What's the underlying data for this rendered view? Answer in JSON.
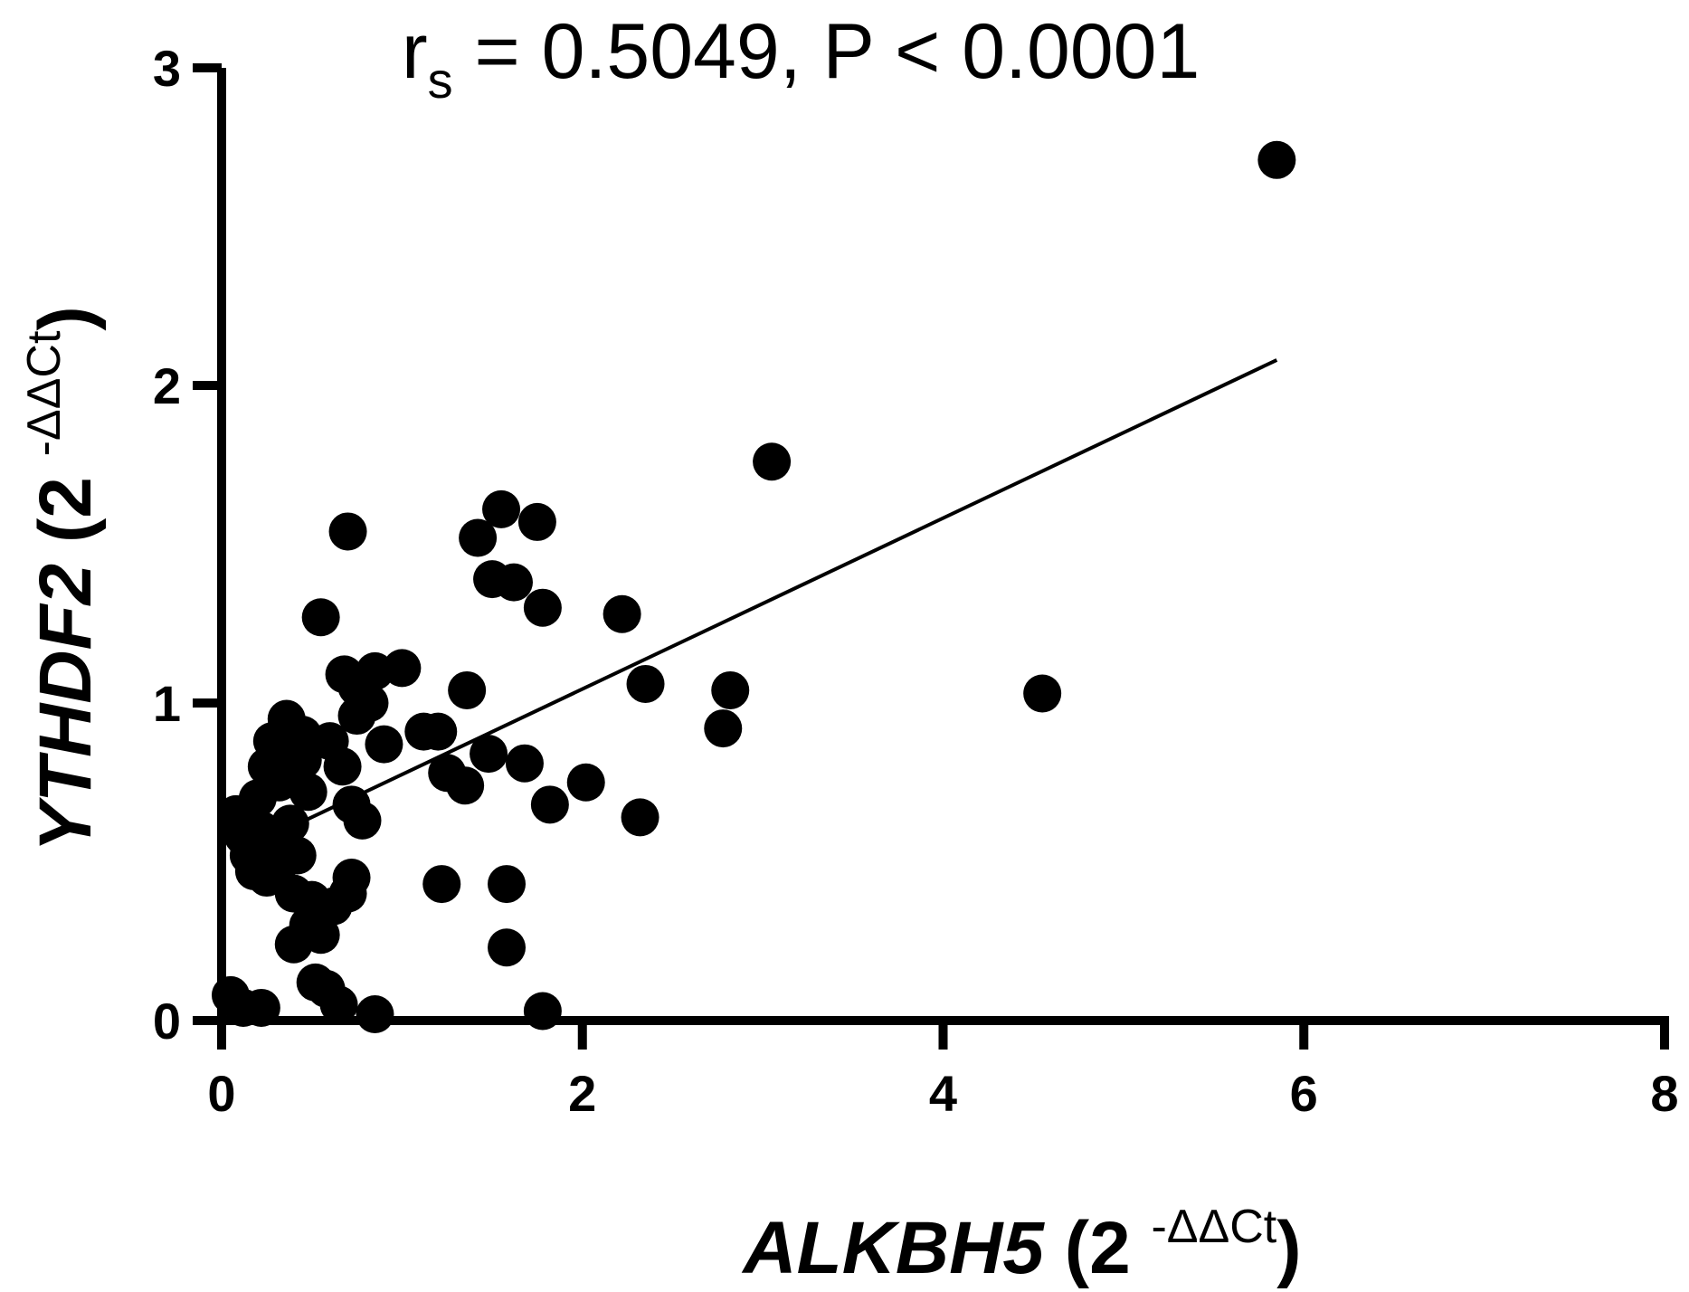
{
  "chart_data": {
    "type": "scatter",
    "title_parts": {
      "r": "r",
      "sub": "s",
      "rest": " = 0.5049, P < 0.0001"
    },
    "xlabel_parts": {
      "gene": "ALKBH5",
      "prefix": " (2 ",
      "sup": "-ΔΔCt",
      "suffix": ")"
    },
    "ylabel_parts": {
      "gene": "YTHDF2",
      "prefix": " (2 ",
      "sup": "-ΔΔCt",
      "suffix": ")"
    },
    "xlim": [
      0,
      8
    ],
    "ylim": [
      0,
      3
    ],
    "xticks": [
      0,
      2,
      4,
      6,
      8
    ],
    "yticks": [
      0,
      1,
      2,
      3
    ],
    "grid": false,
    "regression_line": {
      "x": [
        0.35,
        5.85
      ],
      "y": [
        0.6,
        2.08
      ]
    },
    "points": [
      {
        "x": 0.05,
        "y": 0.08
      },
      {
        "x": 0.12,
        "y": 0.04
      },
      {
        "x": 0.22,
        "y": 0.04
      },
      {
        "x": 0.08,
        "y": 0.65
      },
      {
        "x": 0.12,
        "y": 0.58
      },
      {
        "x": 0.15,
        "y": 0.52
      },
      {
        "x": 0.18,
        "y": 0.47
      },
      {
        "x": 0.2,
        "y": 0.7
      },
      {
        "x": 0.22,
        "y": 0.6
      },
      {
        "x": 0.25,
        "y": 0.8
      },
      {
        "x": 0.25,
        "y": 0.45
      },
      {
        "x": 0.28,
        "y": 0.88
      },
      {
        "x": 0.3,
        "y": 0.55
      },
      {
        "x": 0.32,
        "y": 0.75
      },
      {
        "x": 0.33,
        "y": 0.5
      },
      {
        "x": 0.35,
        "y": 0.85
      },
      {
        "x": 0.38,
        "y": 0.62
      },
      {
        "x": 0.4,
        "y": 0.4
      },
      {
        "x": 0.4,
        "y": 0.24
      },
      {
        "x": 0.42,
        "y": 0.52
      },
      {
        "x": 0.45,
        "y": 0.82
      },
      {
        "x": 0.48,
        "y": 0.3
      },
      {
        "x": 0.5,
        "y": 0.38
      },
      {
        "x": 0.36,
        "y": 0.95
      },
      {
        "x": 0.45,
        "y": 0.9
      },
      {
        "x": 0.48,
        "y": 0.72
      },
      {
        "x": 0.52,
        "y": 0.12
      },
      {
        "x": 0.55,
        "y": 0.27
      },
      {
        "x": 0.58,
        "y": 0.1
      },
      {
        "x": 0.6,
        "y": 0.88
      },
      {
        "x": 0.62,
        "y": 0.36
      },
      {
        "x": 0.65,
        "y": 0.05
      },
      {
        "x": 0.67,
        "y": 0.8
      },
      {
        "x": 0.7,
        "y": 0.4
      },
      {
        "x": 0.72,
        "y": 0.45
      },
      {
        "x": 0.55,
        "y": 1.27
      },
      {
        "x": 0.7,
        "y": 1.54
      },
      {
        "x": 0.68,
        "y": 1.09
      },
      {
        "x": 0.72,
        "y": 0.68
      },
      {
        "x": 0.75,
        "y": 1.05
      },
      {
        "x": 0.75,
        "y": 0.96
      },
      {
        "x": 0.78,
        "y": 0.63
      },
      {
        "x": 0.82,
        "y": 1.0
      },
      {
        "x": 0.85,
        "y": 1.1
      },
      {
        "x": 0.85,
        "y": 0.02
      },
      {
        "x": 0.9,
        "y": 0.87
      },
      {
        "x": 1.0,
        "y": 1.11
      },
      {
        "x": 1.12,
        "y": 0.91
      },
      {
        "x": 1.2,
        "y": 0.91
      },
      {
        "x": 1.22,
        "y": 0.43
      },
      {
        "x": 1.25,
        "y": 0.78
      },
      {
        "x": 1.35,
        "y": 0.74
      },
      {
        "x": 1.36,
        "y": 1.04
      },
      {
        "x": 1.42,
        "y": 1.52
      },
      {
        "x": 1.48,
        "y": 0.84
      },
      {
        "x": 1.5,
        "y": 1.39
      },
      {
        "x": 1.55,
        "y": 1.61
      },
      {
        "x": 1.58,
        "y": 0.43
      },
      {
        "x": 1.58,
        "y": 0.23
      },
      {
        "x": 1.62,
        "y": 1.38
      },
      {
        "x": 1.68,
        "y": 0.81
      },
      {
        "x": 1.75,
        "y": 1.57
      },
      {
        "x": 1.78,
        "y": 1.3
      },
      {
        "x": 1.78,
        "y": 0.03
      },
      {
        "x": 1.82,
        "y": 0.68
      },
      {
        "x": 2.02,
        "y": 0.75
      },
      {
        "x": 2.22,
        "y": 1.28
      },
      {
        "x": 2.32,
        "y": 0.64
      },
      {
        "x": 2.35,
        "y": 1.06
      },
      {
        "x": 2.78,
        "y": 0.92
      },
      {
        "x": 2.82,
        "y": 1.04
      },
      {
        "x": 3.05,
        "y": 1.76
      },
      {
        "x": 4.55,
        "y": 1.03
      },
      {
        "x": 5.85,
        "y": 2.71
      }
    ]
  }
}
